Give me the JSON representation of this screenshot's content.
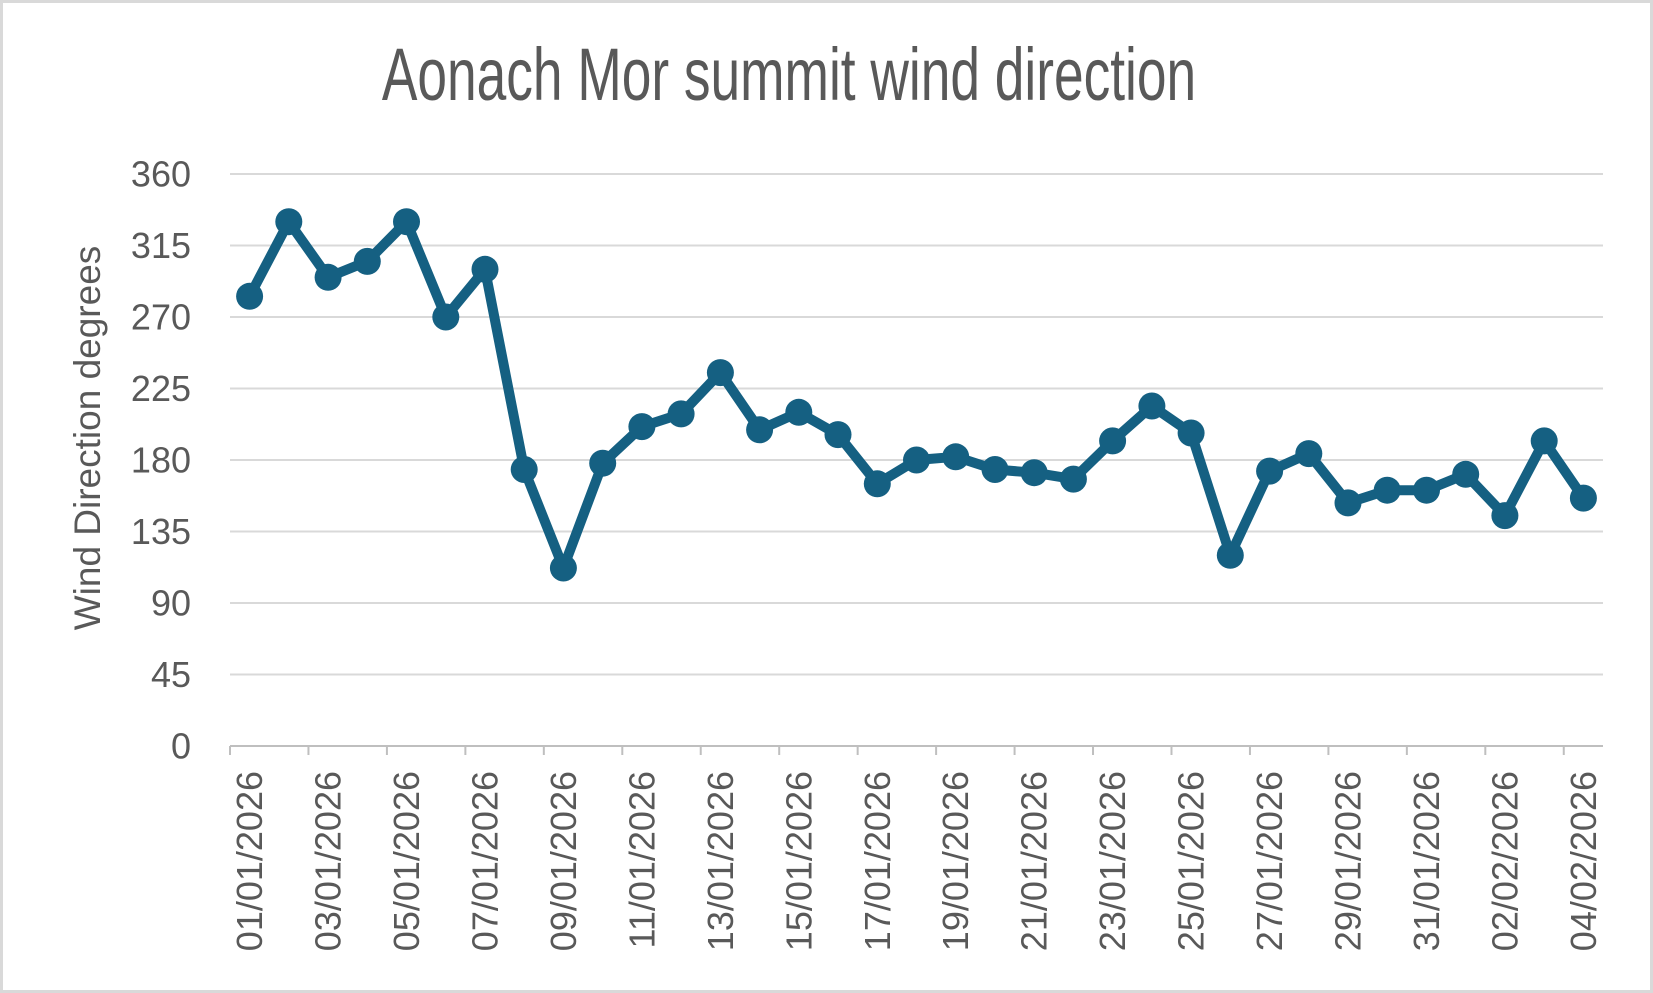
{
  "chart_data": {
    "type": "line",
    "title": "Aonach Mor summit wind direction",
    "xlabel": "",
    "ylabel": "Wind Direction degrees",
    "x": [
      "01/01/2026",
      "02/01/2026",
      "03/01/2026",
      "04/01/2026",
      "05/01/2026",
      "06/01/2026",
      "07/01/2026",
      "08/01/2026",
      "09/01/2026",
      "10/01/2026",
      "11/01/2026",
      "12/01/2026",
      "13/01/2026",
      "14/01/2026",
      "15/01/2026",
      "16/01/2026",
      "17/01/2026",
      "18/01/2026",
      "19/01/2026",
      "20/01/2026",
      "21/01/2026",
      "22/01/2026",
      "23/01/2026",
      "24/01/2026",
      "25/01/2026",
      "26/01/2026",
      "27/01/2026",
      "28/01/2026",
      "29/01/2026",
      "30/01/2026",
      "31/01/2026",
      "01/02/2026",
      "02/02/2026",
      "03/02/2026",
      "04/02/2026"
    ],
    "values": [
      283,
      330,
      295,
      305,
      330,
      270,
      300,
      174,
      112,
      178,
      201,
      209,
      235,
      199,
      210,
      196,
      165,
      180,
      182,
      174,
      172,
      168,
      192,
      214,
      197,
      120,
      173,
      184,
      153,
      161,
      161,
      171,
      145,
      192,
      156
    ],
    "x_tick_labels": [
      "01/01/2026",
      "03/01/2026",
      "05/01/2026",
      "07/01/2026",
      "09/01/2026",
      "11/01/2026",
      "13/01/2026",
      "15/01/2026",
      "17/01/2026",
      "19/01/2026",
      "21/01/2026",
      "23/01/2026",
      "25/01/2026",
      "27/01/2026",
      "29/01/2026",
      "31/01/2026",
      "02/02/2026",
      "04/02/2026"
    ],
    "x_tick_every": 2,
    "y_ticks": [
      0,
      45,
      90,
      135,
      180,
      225,
      270,
      315,
      360
    ],
    "ylim": [
      0,
      360
    ],
    "grid": true,
    "legend": false,
    "marker": "circle",
    "colors": {
      "line": "#156082",
      "grid": "#d9d9d9",
      "axis": "#bfbfbf",
      "text": "#595959",
      "background": "#ffffff",
      "border": "#d9d9d9"
    }
  }
}
